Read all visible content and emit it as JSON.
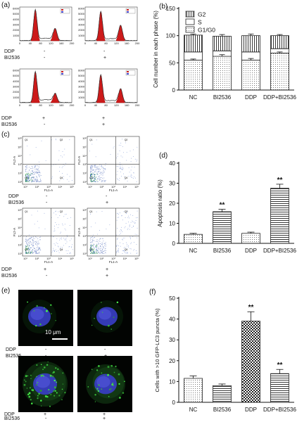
{
  "panels": {
    "a": {
      "label": "(a)",
      "row_labels": [
        "DDP",
        "BI2536"
      ],
      "top_row": {
        "ddp": [
          "-",
          "-"
        ],
        "bi": [
          "-",
          "+"
        ]
      },
      "bottom_row": {
        "ddp": [
          "+",
          "+"
        ],
        "bi": [
          "-",
          "+"
        ]
      },
      "y_ticks": [
        "1000",
        "2000",
        "3000",
        "4000",
        "5000",
        "6000"
      ],
      "x_ticks": [
        "0",
        "40",
        "80",
        "120",
        "160",
        "200"
      ]
    },
    "c": {
      "label": "(c)",
      "row_labels": [
        "DDP",
        "BI2536"
      ],
      "top_row": {
        "ddp": [
          "-",
          "-"
        ],
        "bi": [
          "-",
          "+"
        ]
      },
      "bottom_row": {
        "ddp": [
          "+",
          "+"
        ],
        "bi": [
          "-",
          "+"
        ]
      },
      "axis_x": "FL1-A",
      "axis_y": "FL2-A",
      "y_ticks": [
        "10⁶",
        "10⁵",
        "10⁴",
        "10³",
        "10²",
        "10¹"
      ],
      "x_ticks": [
        "10¹",
        "10²",
        "10³",
        "10⁴",
        "10⁵"
      ]
    },
    "e": {
      "label": "(e)",
      "row_labels": [
        "DDP",
        "BI2536"
      ],
      "top_row": {
        "ddp": [
          "-",
          "-"
        ],
        "bi": [
          "-",
          "+"
        ]
      },
      "bottom_row": {
        "ddp": [
          "+",
          "+"
        ],
        "bi": [
          "-",
          "+"
        ]
      },
      "scale_bar": "10 μm"
    }
  },
  "chart_data": [
    {
      "id": "b",
      "panel_label": "(b)",
      "type": "bar",
      "stacked": true,
      "categories": [
        "NC",
        "BI2536",
        "DDP",
        "DDP+BI2536"
      ],
      "series": [
        {
          "name": "G1/G0",
          "values": [
            55,
            62,
            55,
            68
          ],
          "pattern": "dots"
        },
        {
          "name": "S",
          "values": [
            15,
            10,
            15,
            8
          ],
          "pattern": "none"
        },
        {
          "name": "G2",
          "values": [
            31,
            27,
            30,
            24
          ],
          "pattern": "vlines"
        }
      ],
      "errors": [
        2,
        3,
        3,
        2
      ],
      "ylabel": "Cell number in each phase (%)",
      "ylim": [
        0,
        150
      ],
      "yticks": [
        0,
        50,
        100,
        150
      ],
      "legend": "top-left"
    },
    {
      "id": "d",
      "panel_label": "(d)",
      "type": "bar",
      "categories": [
        "NC",
        "BI2536",
        "DDP",
        "DDP+BI2536"
      ],
      "values": [
        4.5,
        15.8,
        5.0,
        27.5
      ],
      "errors": [
        0.5,
        1.2,
        0.6,
        2.0
      ],
      "significance": [
        "",
        "**",
        "",
        "**"
      ],
      "patterns": [
        "dots",
        "hlines",
        "dots",
        "hlines"
      ],
      "ylabel": "Apoptosis ratio (%)",
      "ylim": [
        0,
        40
      ],
      "yticks": [
        0,
        10,
        20,
        30,
        40
      ],
      "ytick_labels": [
        "0",
        "10",
        "20",
        "30",
        "40"
      ]
    },
    {
      "id": "f",
      "panel_label": "(f)",
      "type": "bar",
      "categories": [
        "NC",
        "BI2536",
        "DDP",
        "DDP+BI2536"
      ],
      "values": [
        11.5,
        8.0,
        39.0,
        13.8
      ],
      "errors": [
        1.2,
        0.8,
        4.5,
        2.0
      ],
      "significance": [
        "",
        "",
        "**",
        "**"
      ],
      "patterns": [
        "dots",
        "hlines",
        "checker",
        "hlines"
      ],
      "ylabel": "Cells with >10 GFP-LC3 puncta (%)",
      "ylim": [
        0,
        50
      ],
      "yticks": [
        0,
        10,
        20,
        30,
        40,
        50
      ],
      "ytick_labels": [
        "0",
        "10",
        "20",
        "30",
        "40",
        "50"
      ]
    }
  ]
}
